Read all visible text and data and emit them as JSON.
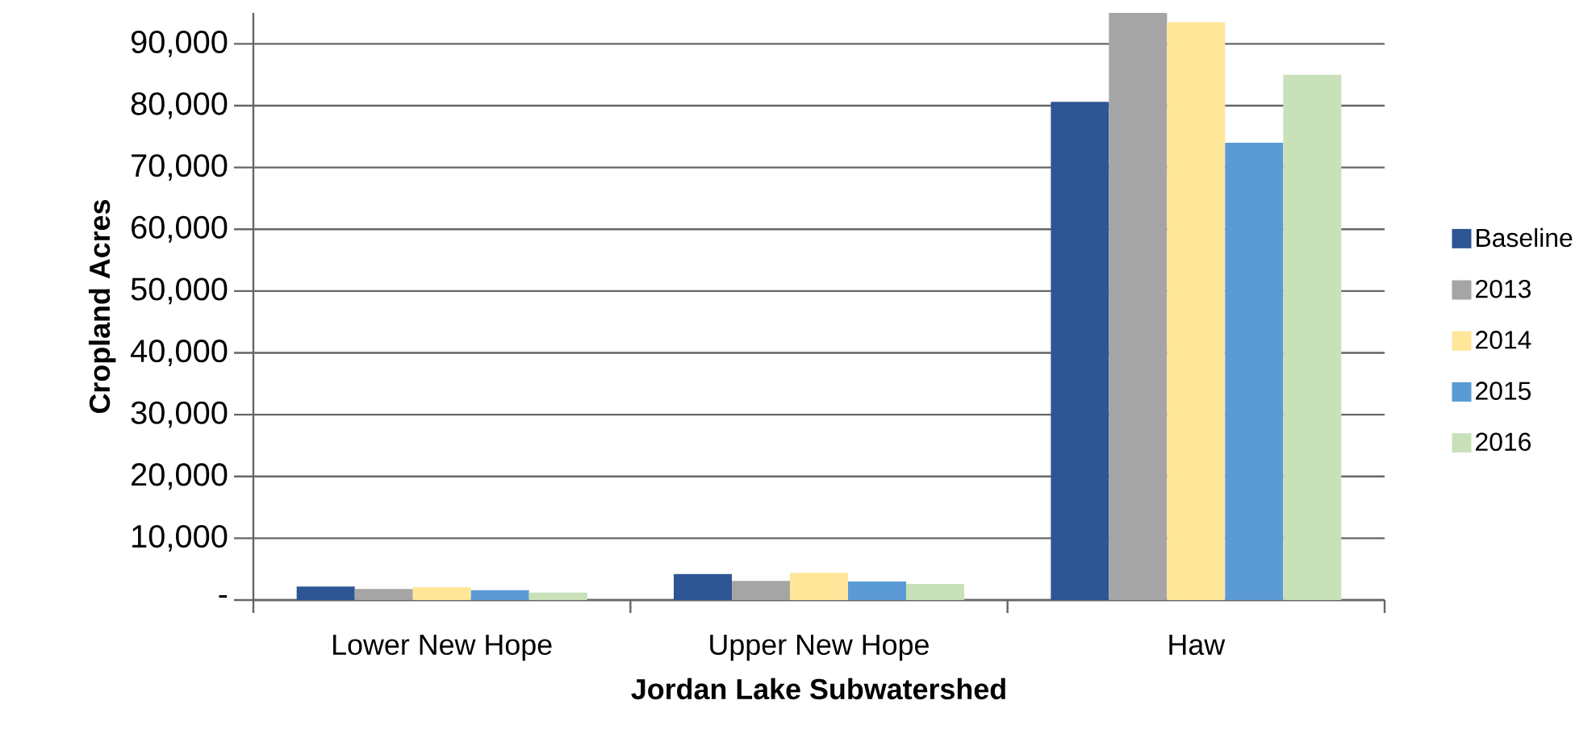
{
  "chart_data": {
    "type": "bar",
    "xlabel": "Jordan Lake Subwatershed",
    "ylabel": "Cropland Acres",
    "categories": [
      "Lower New Hope",
      "Upper New Hope",
      "Haw"
    ],
    "series": [
      {
        "name": "Baseline",
        "color": "#2e5594",
        "values": [
          2200,
          4200,
          80600
        ]
      },
      {
        "name": "2013",
        "color": "#a5a5a5",
        "values": [
          1800,
          3100,
          95000
        ]
      },
      {
        "name": "2014",
        "color": "#ffe699",
        "values": [
          2100,
          4400,
          93500
        ]
      },
      {
        "name": "2015",
        "color": "#5b9bd5",
        "values": [
          1600,
          3000,
          74000
        ]
      },
      {
        "name": "2016",
        "color": "#c9e1b9",
        "values": [
          1200,
          2600,
          85000
        ]
      }
    ],
    "ylim": [
      0,
      95000
    ],
    "yticks": [
      {
        "value": 0,
        "label": "-"
      },
      {
        "value": 10000,
        "label": "10,000"
      },
      {
        "value": 20000,
        "label": "20,000"
      },
      {
        "value": 30000,
        "label": "30,000"
      },
      {
        "value": 40000,
        "label": "40,000"
      },
      {
        "value": 50000,
        "label": "50,000"
      },
      {
        "value": 60000,
        "label": "60,000"
      },
      {
        "value": 70000,
        "label": "70,000"
      },
      {
        "value": 80000,
        "label": "80,000"
      },
      {
        "value": 90000,
        "label": "90,000"
      }
    ],
    "grid": "y",
    "legend": "right"
  }
}
